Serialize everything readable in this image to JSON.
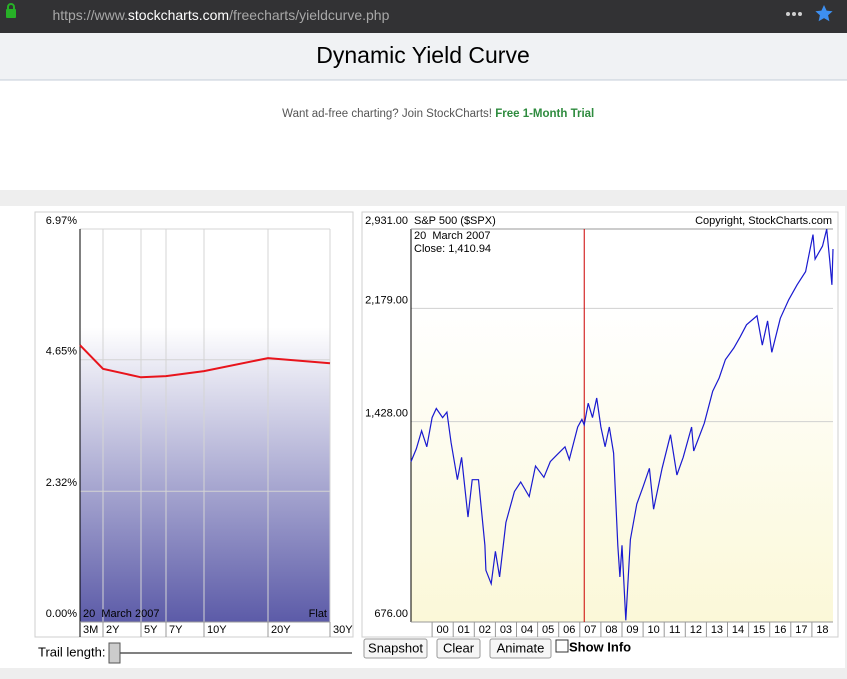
{
  "browser": {
    "url_parts": [
      "https://www.",
      "stockcharts.com",
      "/freecharts/yieldcurve.php"
    ]
  },
  "header": {
    "title": "Dynamic Yield Curve"
  },
  "ad": {
    "text": "Want ad-free charting? Join StockCharts! ",
    "link": "Free 1-Month Trial"
  },
  "chart_data": [
    {
      "type": "line",
      "categories": [
        "3M",
        "2Y",
        "5Y",
        "7Y",
        "10Y",
        "20Y",
        "30Y"
      ],
      "values": [
        4.91,
        4.49,
        4.34,
        4.36,
        4.45,
        4.68,
        4.59
      ],
      "color": "#e8141c",
      "ylim": [
        0,
        6.97
      ],
      "yticks": [
        {
          "value": 0,
          "label": "0.00%"
        },
        {
          "value": 2.32,
          "label": "2.32%"
        },
        {
          "value": 4.65,
          "label": "4.65%"
        },
        {
          "value": 6.97,
          "label": "6.97%"
        }
      ],
      "grid": true,
      "date_label": "20  March 2007",
      "shape_label": "Flat"
    },
    {
      "type": "line",
      "title": "S&P 500 ($SPX)",
      "copyright": "Copyright, StockCharts.com",
      "date_label": "20  March 2007",
      "close_label": "Close: 1,410.94",
      "x": [
        1999.0,
        1999.25,
        1999.5,
        1999.75,
        2000.0,
        2000.2,
        2000.5,
        2000.7,
        2000.9,
        2001.2,
        2001.4,
        2001.7,
        2001.9,
        2002.2,
        2002.5,
        2002.55,
        2002.8,
        2003.0,
        2003.2,
        2003.5,
        2003.9,
        2004.2,
        2004.6,
        2004.9,
        2005.3,
        2005.6,
        2005.9,
        2006.3,
        2006.5,
        2006.9,
        2007.1,
        2007.21,
        2007.4,
        2007.6,
        2007.8,
        2008.0,
        2008.2,
        2008.4,
        2008.6,
        2008.8,
        2008.9,
        2009.0,
        2009.18,
        2009.4,
        2009.7,
        2010.0,
        2010.3,
        2010.5,
        2010.9,
        2011.3,
        2011.6,
        2011.9,
        2012.3,
        2012.4,
        2012.9,
        2013.3,
        2013.6,
        2013.9,
        2014.3,
        2014.6,
        2014.9,
        2015.4,
        2015.65,
        2015.9,
        2016.1,
        2016.5,
        2016.9,
        2017.3,
        2017.7,
        2018.05,
        2018.15,
        2018.5,
        2018.7,
        2018.85,
        2018.95,
        2019.0
      ],
      "values": [
        1230,
        1290,
        1380,
        1300,
        1450,
        1500,
        1450,
        1480,
        1320,
        1150,
        1250,
        1000,
        1150,
        1150,
        900,
        820,
        780,
        880,
        800,
        980,
        1100,
        1140,
        1080,
        1210,
        1160,
        1230,
        1260,
        1300,
        1240,
        1400,
        1440,
        1410.94,
        1530,
        1450,
        1560,
        1400,
        1300,
        1400,
        1270,
        900,
        800,
        900,
        680,
        920,
        1050,
        1120,
        1200,
        1030,
        1200,
        1360,
        1170,
        1250,
        1400,
        1280,
        1420,
        1600,
        1680,
        1800,
        1880,
        1960,
        2050,
        2120,
        1900,
        2080,
        1850,
        2100,
        2250,
        2380,
        2500,
        2870,
        2620,
        2750,
        2930,
        2600,
        2380,
        2720
      ],
      "color": "#1a1ad0",
      "xlim": [
        1999,
        2019
      ],
      "xticks": [
        {
          "value": 2000,
          "label": "00"
        },
        {
          "value": 2001,
          "label": "01"
        },
        {
          "value": 2002,
          "label": "02"
        },
        {
          "value": 2003,
          "label": "03"
        },
        {
          "value": 2004,
          "label": "04"
        },
        {
          "value": 2005,
          "label": "05"
        },
        {
          "value": 2006,
          "label": "06"
        },
        {
          "value": 2007,
          "label": "07"
        },
        {
          "value": 2008,
          "label": "08"
        },
        {
          "value": 2009,
          "label": "09"
        },
        {
          "value": 2010,
          "label": "10"
        },
        {
          "value": 2011,
          "label": "11"
        },
        {
          "value": 2012,
          "label": "12"
        },
        {
          "value": 2013,
          "label": "13"
        },
        {
          "value": 2014,
          "label": "14"
        },
        {
          "value": 2015,
          "label": "15"
        },
        {
          "value": 2016,
          "label": "16"
        },
        {
          "value": 2017,
          "label": "17"
        },
        {
          "value": 2018,
          "label": "18"
        }
      ],
      "ylim": [
        676,
        2931
      ],
      "yticks": [
        {
          "value": 676,
          "label": "676.00"
        },
        {
          "value": 1428,
          "label": "1,428.00"
        },
        {
          "value": 2179,
          "label": "2,179.00"
        },
        {
          "value": 2931,
          "label": "2,931.00"
        }
      ],
      "log_scale": true,
      "grid": true,
      "marker_x": 2007.21,
      "marker_color": "#cc0000"
    }
  ],
  "controls": {
    "trail_label": "Trail length:",
    "buttons": [
      "Snapshot",
      "Clear",
      "Animate"
    ],
    "checkbox": "Show Info"
  }
}
